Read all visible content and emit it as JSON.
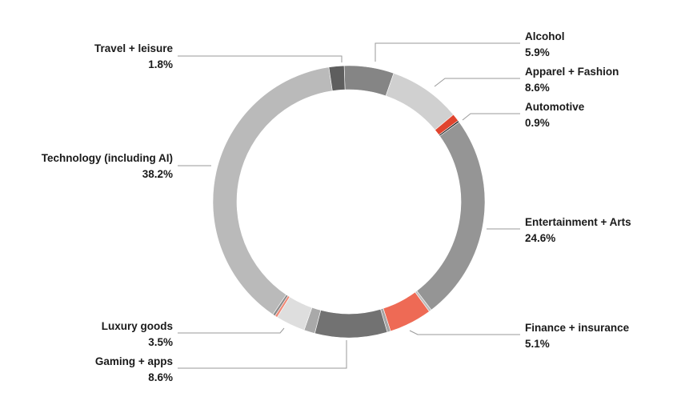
{
  "chart_data": {
    "type": "pie",
    "donut": true,
    "title": "",
    "legend": "none",
    "slices": [
      {
        "key": "alcohol",
        "label": "Alcohol",
        "value": 5.9,
        "value_label": "5.9%",
        "color": "#858585",
        "labeled": true
      },
      {
        "key": "apparel",
        "label": "Apparel + Fashion",
        "value": 8.6,
        "value_label": "8.6%",
        "color": "#d0d0d0",
        "labeled": true
      },
      {
        "key": "automotive",
        "label": "Automotive",
        "value": 0.9,
        "value_label": "0.9%",
        "color": "#e0442e",
        "labeled": true
      },
      {
        "key": "unlabeled-1",
        "label": "",
        "value": 0.2,
        "value_label": "",
        "color": "#222222",
        "labeled": false
      },
      {
        "key": "entertainment",
        "label": "Entertainment + Arts",
        "value": 24.6,
        "value_label": "24.6%",
        "color": "#959595",
        "labeled": true
      },
      {
        "key": "unlabeled-2",
        "label": "",
        "value": 0.3,
        "value_label": "",
        "color": "#bdbdbd",
        "labeled": false
      },
      {
        "key": "finance",
        "label": "Finance + insurance",
        "value": 5.1,
        "value_label": "5.1%",
        "color": "#ee6a55",
        "labeled": true
      },
      {
        "key": "unlabeled-3",
        "label": "",
        "value": 0.4,
        "value_label": "",
        "color": "#a5a5a5",
        "labeled": false
      },
      {
        "key": "gaming",
        "label": "Gaming + apps",
        "value": 8.6,
        "value_label": "8.6%",
        "color": "#727272",
        "labeled": true
      },
      {
        "key": "unlabeled-4",
        "label": "",
        "value": 1.3,
        "value_label": "",
        "color": "#a9a9a9",
        "labeled": false
      },
      {
        "key": "luxury",
        "label": "Luxury goods",
        "value": 3.5,
        "value_label": "3.5%",
        "color": "#dedede",
        "labeled": true
      },
      {
        "key": "unlabeled-5",
        "label": "",
        "value": 0.3,
        "value_label": "",
        "color": "#f08a78",
        "labeled": false
      },
      {
        "key": "unlabeled-6",
        "label": "",
        "value": 0.3,
        "value_label": "",
        "color": "#8a8a8a",
        "labeled": false
      },
      {
        "key": "technology",
        "label": "Technology (including AI)",
        "value": 38.2,
        "value_label": "38.2%",
        "color": "#bababa",
        "labeled": true
      },
      {
        "key": "travel",
        "label": "Travel + leisure",
        "value": 1.8,
        "value_label": "1.8%",
        "color": "#5e5e5e",
        "labeled": true
      }
    ]
  }
}
